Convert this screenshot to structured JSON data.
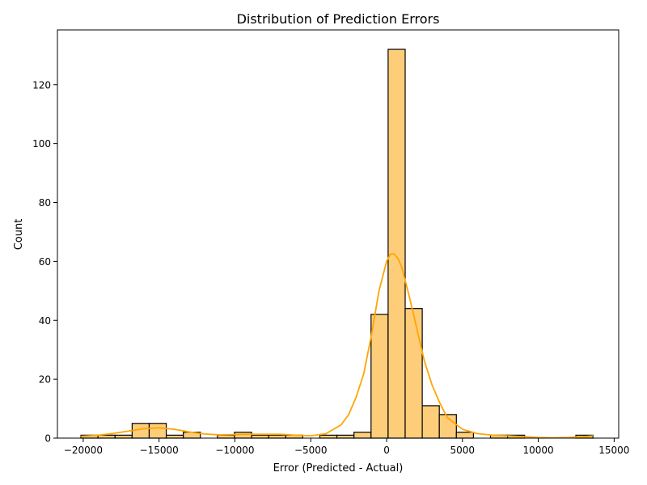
{
  "chart_data": {
    "type": "bar",
    "title": "Distribution of Prediction Errors",
    "xlabel": "Error (Predicted - Actual)",
    "ylabel": "Count",
    "xlim": [
      -21700,
      15300
    ],
    "ylim": [
      0,
      138.6
    ],
    "xticks": [
      -20000,
      -15000,
      -10000,
      -5000,
      0,
      5000,
      10000,
      15000
    ],
    "xtick_labels": [
      "−20000",
      "−15000",
      "−10000",
      "−5000",
      "0",
      "5000",
      "10000",
      "15000"
    ],
    "yticks": [
      0,
      20,
      40,
      60,
      80,
      100,
      120
    ],
    "ytick_labels": [
      "0",
      "20",
      "40",
      "60",
      "80",
      "100",
      "120"
    ],
    "grid": false,
    "bins": {
      "start": -20150,
      "width": 1125,
      "counts": [
        1,
        1,
        1,
        5,
        5,
        1,
        2,
        0,
        1,
        2,
        1,
        1,
        1,
        0,
        1,
        1,
        2,
        42,
        132,
        44,
        11,
        8,
        2,
        0,
        1,
        1,
        0,
        0,
        0,
        1
      ]
    },
    "kde": {
      "x": [
        -20150,
        -19000,
        -18000,
        -17000,
        -16000,
        -15000,
        -14000,
        -13000,
        -12000,
        -11000,
        -10000,
        -9000,
        -8000,
        -7000,
        -6000,
        -5000,
        -4000,
        -3000,
        -2500,
        -2000,
        -1500,
        -1000,
        -500,
        0,
        250,
        500,
        750,
        1000,
        1500,
        2000,
        2500,
        3000,
        3500,
        4000,
        5000,
        6000,
        7000,
        8000,
        9000,
        10000,
        11000,
        12000,
        13000,
        13600
      ],
      "y": [
        0.6,
        1.0,
        1.6,
        2.4,
        3.2,
        3.5,
        3.0,
        2.1,
        1.4,
        1.1,
        1.2,
        1.3,
        1.3,
        1.3,
        1.0,
        0.8,
        1.5,
        4.5,
        8.0,
        14.0,
        22.0,
        35.0,
        50.0,
        60.0,
        62.5,
        62.5,
        61.0,
        58.0,
        48.0,
        37.0,
        26.0,
        18.0,
        12.0,
        7.0,
        3.0,
        1.5,
        1.0,
        0.8,
        0.5,
        0.2,
        0.1,
        0.2,
        0.5,
        0.8
      ]
    },
    "colors": {
      "bar_fill": "#fecd7a",
      "bar_edge": "#000000",
      "kde_line": "#ffa500",
      "axis": "#000000"
    }
  }
}
